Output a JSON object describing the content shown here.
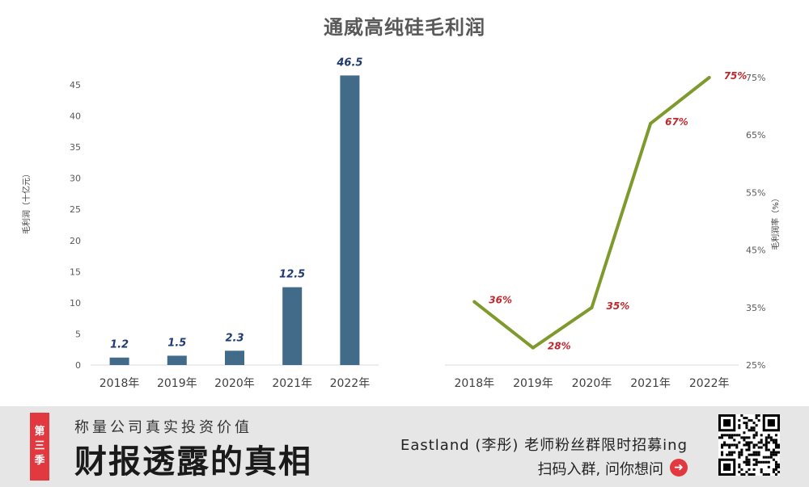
{
  "chart_data": [
    {
      "type": "bar",
      "title": "通威高纯硅毛利润",
      "categories": [
        "2018年",
        "2019年",
        "2020年",
        "2021年",
        "2022年"
      ],
      "values": [
        1.2,
        1.5,
        2.3,
        12.5,
        46.5
      ],
      "data_labels": [
        "1.2",
        "1.5",
        "2.3",
        "12.5",
        "46.5"
      ],
      "ylabel": "毛利润（十亿元）",
      "ylim": [
        0,
        45
      ],
      "yticks": [
        "0",
        "5",
        "10",
        "15",
        "20",
        "25",
        "30",
        "35",
        "40",
        "45"
      ],
      "bar_color": "#426b89",
      "label_color": "#1f3a6e",
      "grid": false
    },
    {
      "type": "line",
      "categories": [
        "2018年",
        "2019年",
        "2020年",
        "2021年",
        "2022年"
      ],
      "values": [
        36,
        28,
        35,
        67,
        75
      ],
      "data_labels": [
        "36%",
        "28%",
        "35%",
        "67%",
        "75%"
      ],
      "ylabel": "毛利润率（%）",
      "ylim": [
        25,
        75
      ],
      "yticks": [
        "25%",
        "35%",
        "45%",
        "55%",
        "65%",
        "75%"
      ],
      "y_axis_side": "right",
      "line_color": "#7f9a2c",
      "label_color": "#c0282e",
      "grid": false
    }
  ],
  "banner": {
    "season_badge": "第三季",
    "subtitle": "称量公司真实投资价值",
    "slogan": "财报透露的真相",
    "recruit": "Eastland (李彤) 老师粉丝群限时招募ing",
    "scan": "扫码入群, 问你想问",
    "arrow_icon": "arrow-right-circle-icon",
    "qr_icon": "qr-code-icon",
    "accent_color": "#e2383f"
  }
}
